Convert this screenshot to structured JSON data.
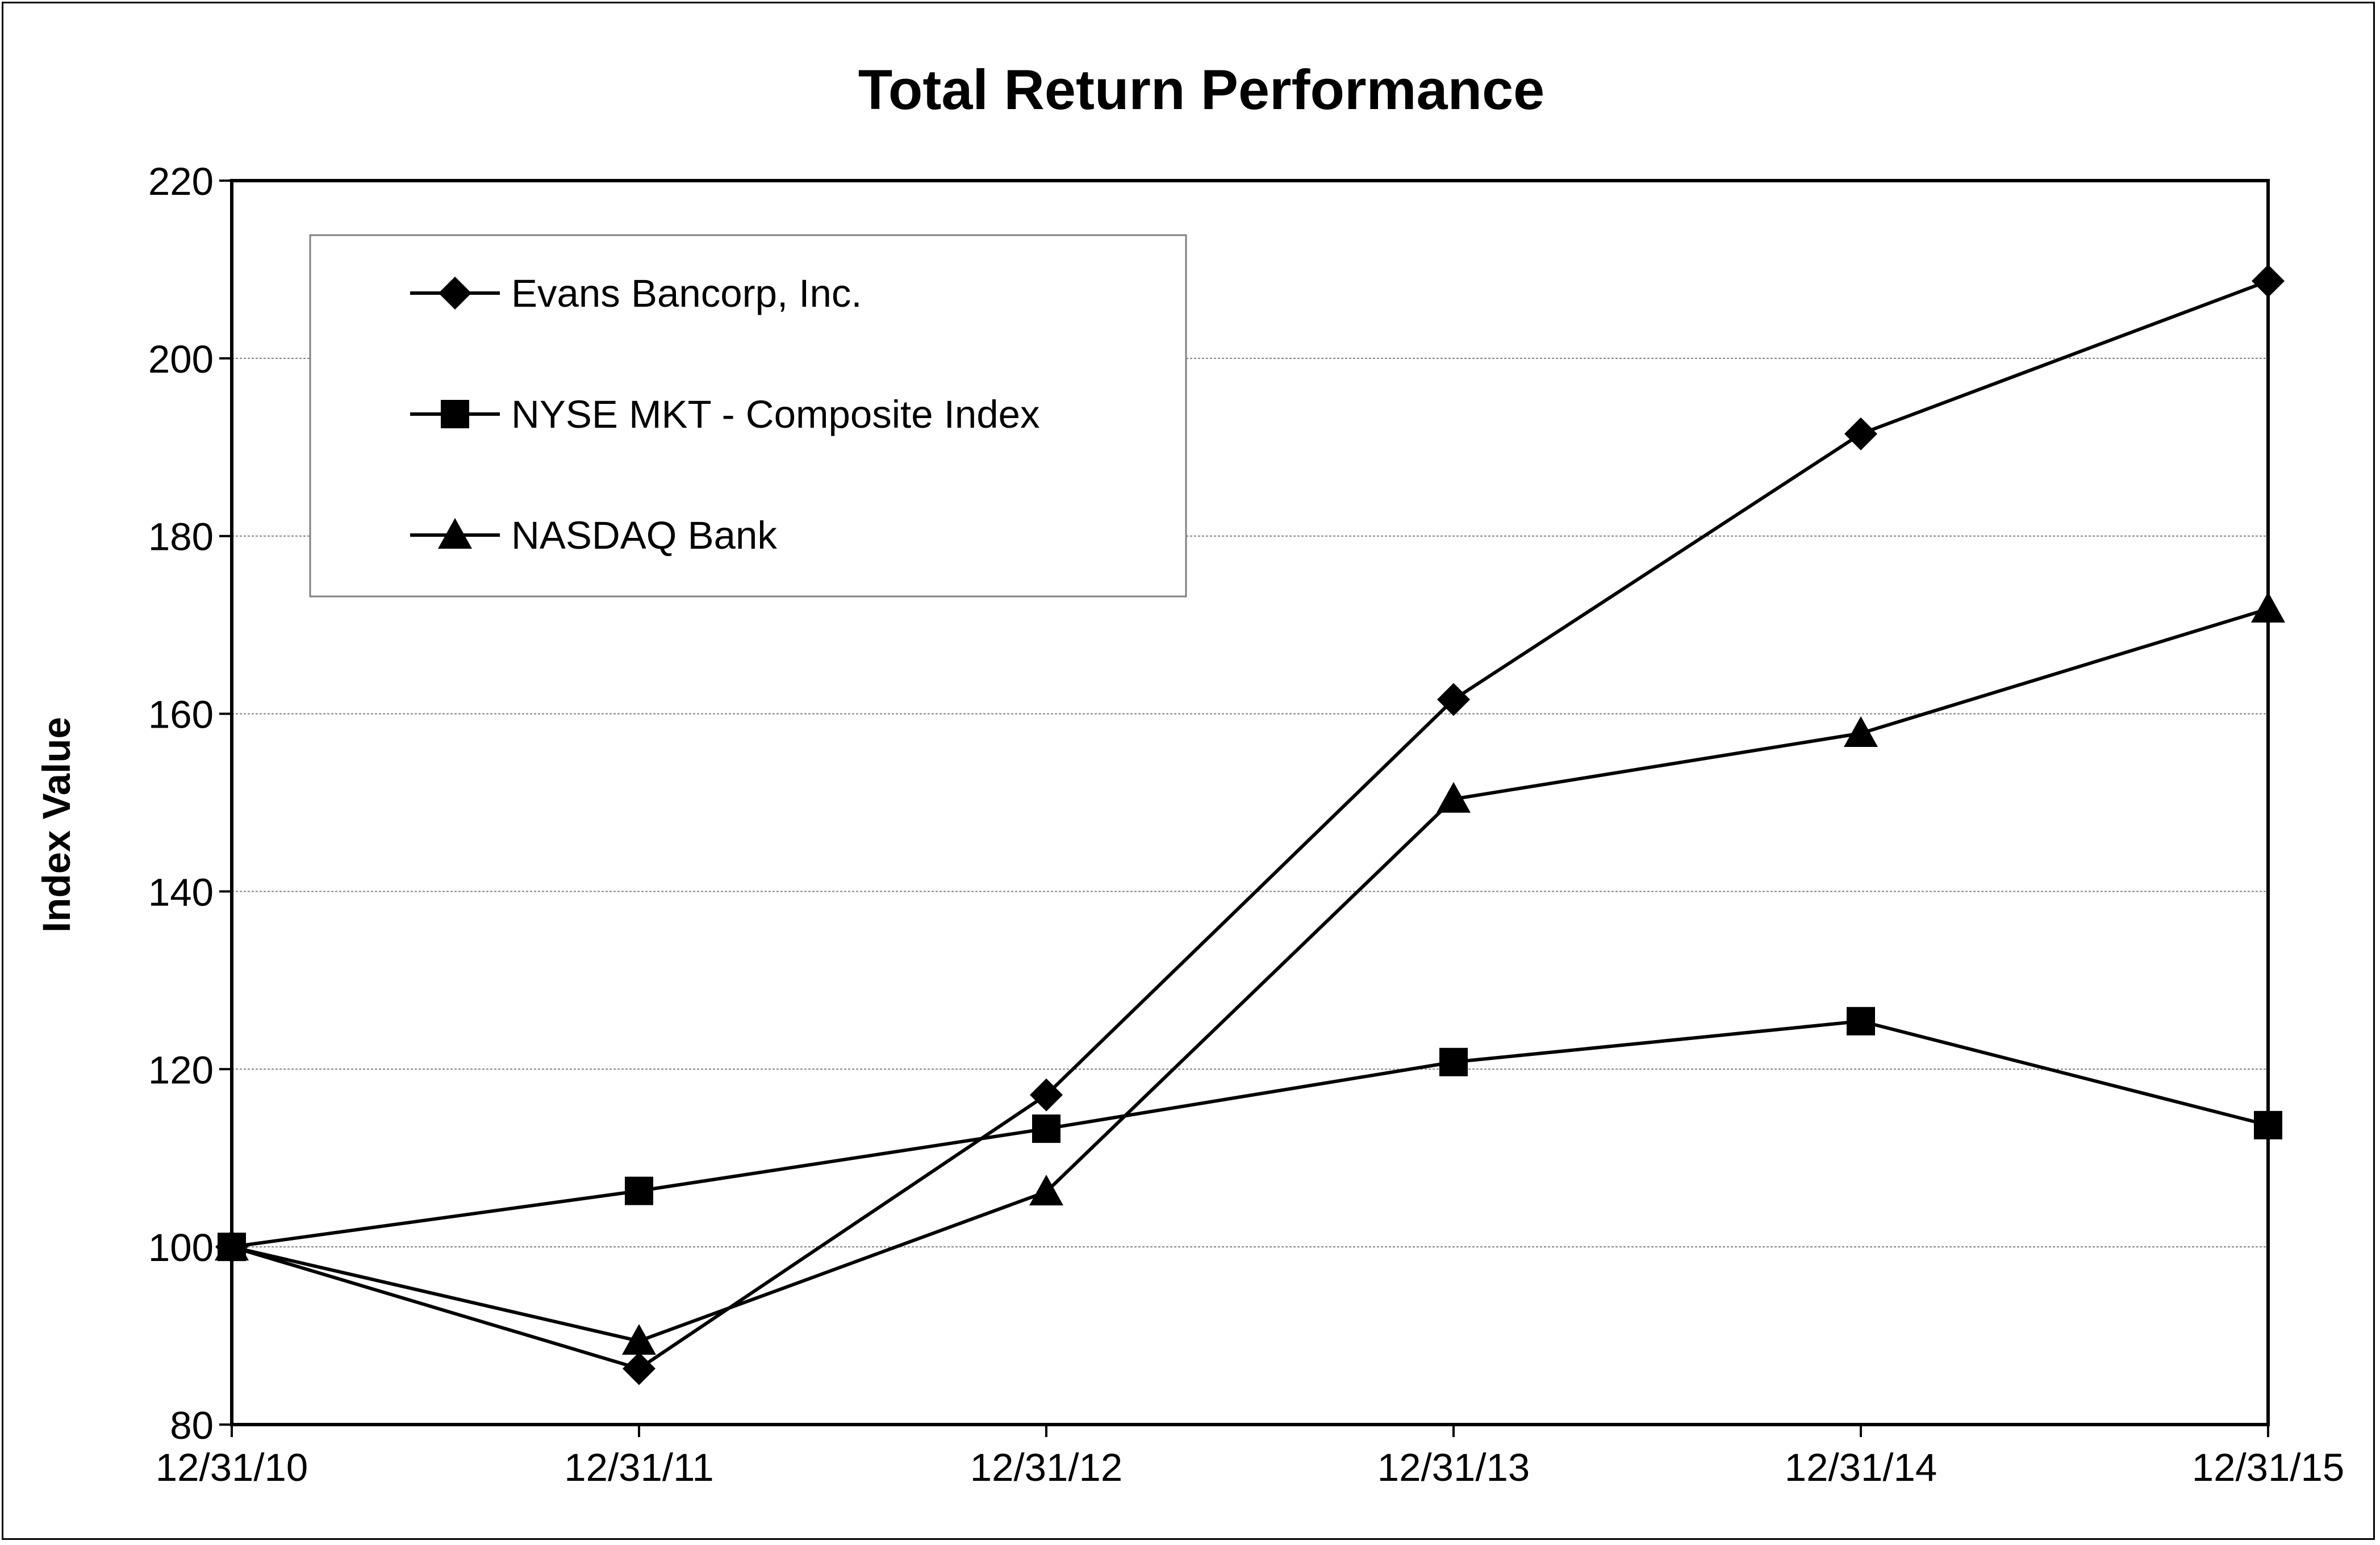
{
  "chart_data": {
    "type": "line",
    "title": "Total Return Performance",
    "xlabel": "",
    "ylabel": "Index Value",
    "categories": [
      "12/31/10",
      "12/31/11",
      "12/31/12",
      "12/31/13",
      "12/31/14",
      "12/31/15"
    ],
    "ylim": [
      80,
      220
    ],
    "yticks": [
      80,
      100,
      120,
      140,
      160,
      180,
      200,
      220
    ],
    "grid": true,
    "legend_position": "top-left",
    "series": [
      {
        "name": "Evans Bancorp, Inc.",
        "marker": "diamond",
        "values": [
          100,
          86.3,
          117.1,
          161.6,
          191.5,
          208.7
        ]
      },
      {
        "name": "NYSE MKT - Composite Index",
        "marker": "square",
        "values": [
          100,
          106.3,
          113.3,
          120.8,
          125.4,
          113.7
        ]
      },
      {
        "name": "NASDAQ Bank",
        "marker": "triangle",
        "values": [
          100,
          89.4,
          106.2,
          150.4,
          157.8,
          171.8
        ]
      }
    ],
    "colors": {
      "line": "#000000",
      "grid": "#808080",
      "background": "#ffffff"
    }
  }
}
